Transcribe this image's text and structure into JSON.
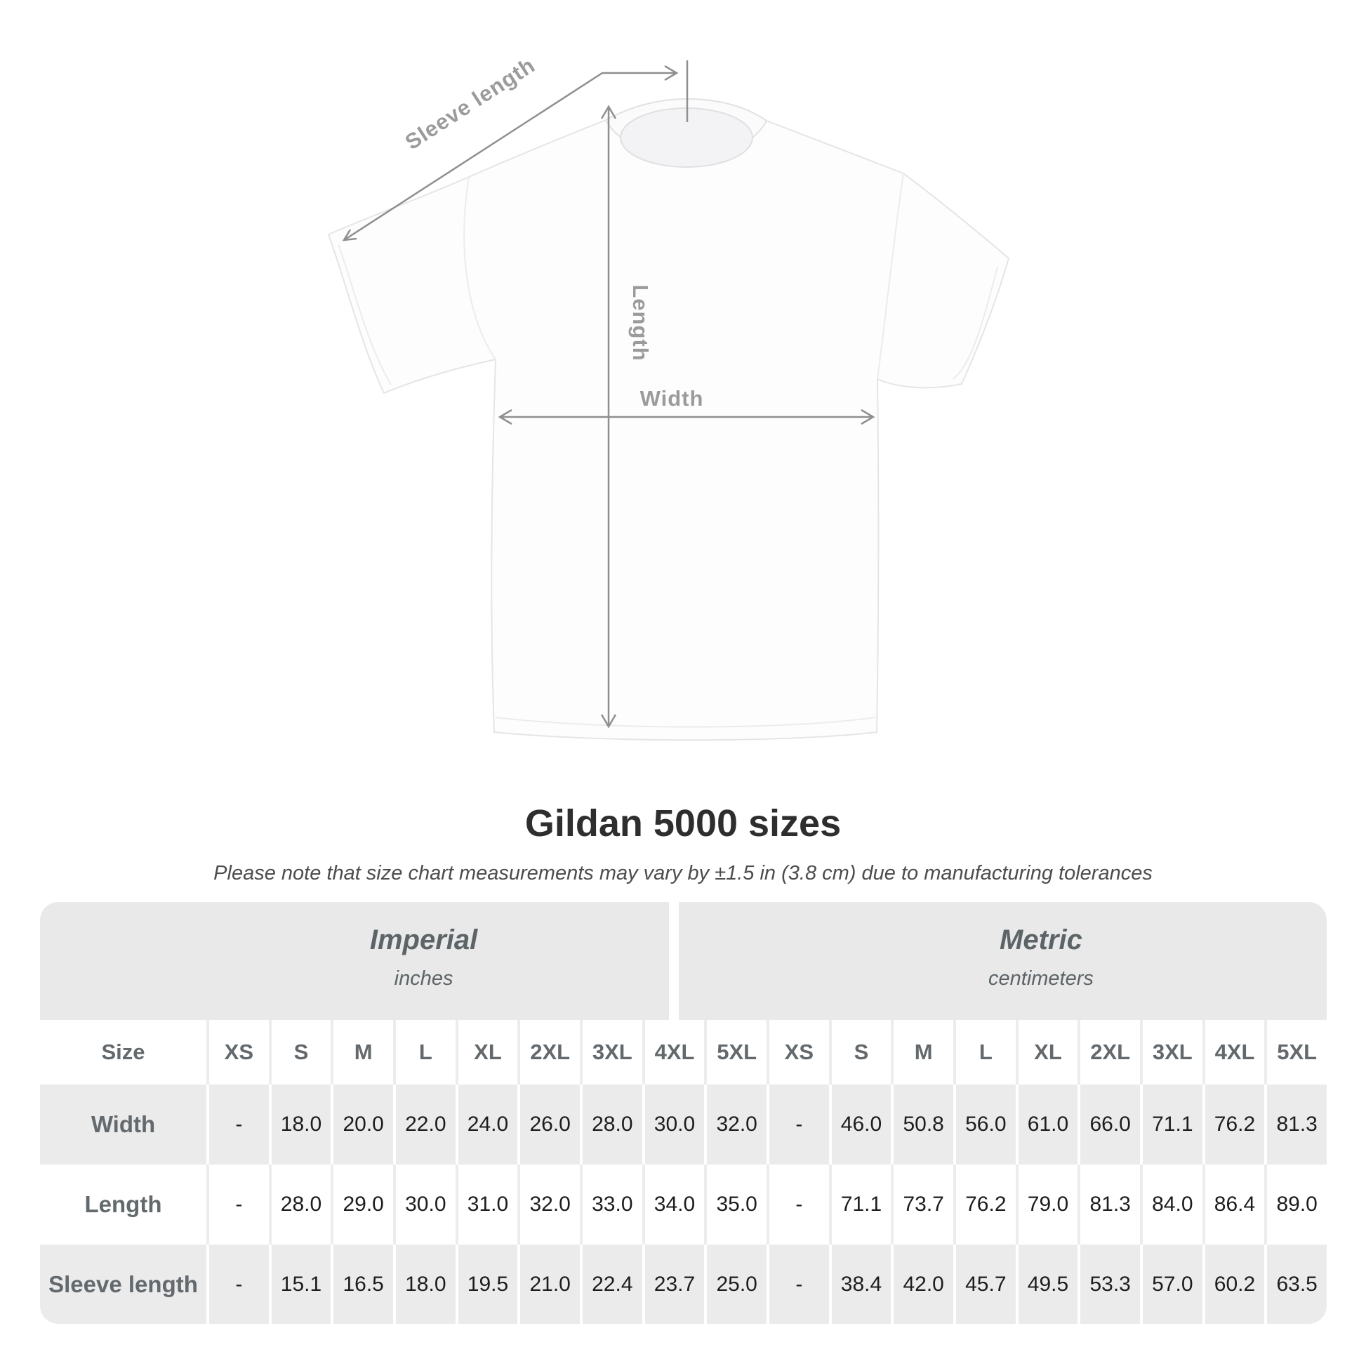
{
  "title": "Gildan 5000 sizes",
  "subtitle": "Please note that size chart measurements may vary by ±1.5 in (3.8 cm) due to manufacturing tolerances",
  "diagram": {
    "labels": {
      "sleeve_length": "Sleeve length",
      "length": "Length",
      "width": "Width"
    }
  },
  "table": {
    "size_header": "Size",
    "groups": [
      {
        "label": "Imperial",
        "sublabel": "inches"
      },
      {
        "label": "Metric",
        "sublabel": "centimeters"
      }
    ],
    "sizes": [
      "XS",
      "S",
      "M",
      "L",
      "XL",
      "2XL",
      "3XL",
      "4XL",
      "5XL"
    ],
    "rows": [
      {
        "label": "Width",
        "imperial": [
          "-",
          "18.0",
          "20.0",
          "22.0",
          "24.0",
          "26.0",
          "28.0",
          "30.0",
          "32.0"
        ],
        "metric": [
          "-",
          "46.0",
          "50.8",
          "56.0",
          "61.0",
          "66.0",
          "71.1",
          "76.2",
          "81.3"
        ]
      },
      {
        "label": "Length",
        "imperial": [
          "-",
          "28.0",
          "29.0",
          "30.0",
          "31.0",
          "32.0",
          "33.0",
          "34.0",
          "35.0"
        ],
        "metric": [
          "-",
          "71.1",
          "73.7",
          "76.2",
          "79.0",
          "81.3",
          "84.0",
          "86.4",
          "89.0"
        ]
      },
      {
        "label": "Sleeve length",
        "imperial": [
          "-",
          "15.1",
          "16.5",
          "18.0",
          "19.5",
          "21.0",
          "22.4",
          "23.7",
          "25.0"
        ],
        "metric": [
          "-",
          "38.4",
          "42.0",
          "45.7",
          "49.5",
          "53.3",
          "57.0",
          "60.2",
          "63.5"
        ]
      }
    ]
  },
  "chart_data": {
    "type": "table",
    "title": "Gildan 5000 sizes",
    "note": "Please note that size chart measurements may vary by ±1.5 in (3.8 cm) due to manufacturing tolerances",
    "unit_groups": [
      {
        "name": "Imperial",
        "unit": "inches",
        "columns": [
          "XS",
          "S",
          "M",
          "L",
          "XL",
          "2XL",
          "3XL",
          "4XL",
          "5XL"
        ],
        "rows": [
          {
            "measure": "Width",
            "values": [
              null,
              18.0,
              20.0,
              22.0,
              24.0,
              26.0,
              28.0,
              30.0,
              32.0
            ]
          },
          {
            "measure": "Length",
            "values": [
              null,
              28.0,
              29.0,
              30.0,
              31.0,
              32.0,
              33.0,
              34.0,
              35.0
            ]
          },
          {
            "measure": "Sleeve length",
            "values": [
              null,
              15.1,
              16.5,
              18.0,
              19.5,
              21.0,
              22.4,
              23.7,
              25.0
            ]
          }
        ]
      },
      {
        "name": "Metric",
        "unit": "centimeters",
        "columns": [
          "XS",
          "S",
          "M",
          "L",
          "XL",
          "2XL",
          "3XL",
          "4XL",
          "5XL"
        ],
        "rows": [
          {
            "measure": "Width",
            "values": [
              null,
              46.0,
              50.8,
              56.0,
              61.0,
              66.0,
              71.1,
              76.2,
              81.3
            ]
          },
          {
            "measure": "Length",
            "values": [
              null,
              71.1,
              73.7,
              76.2,
              79.0,
              81.3,
              84.0,
              86.4,
              89.0
            ]
          },
          {
            "measure": "Sleeve length",
            "values": [
              null,
              38.4,
              42.0,
              45.7,
              49.5,
              53.3,
              57.0,
              60.2,
              63.5
            ]
          }
        ]
      }
    ]
  },
  "colors": {
    "dimension_line": "#8f8f8f",
    "dimension_label": "#9b9b9b",
    "title_text": "#2e2e2e",
    "table_header_text": "#63696c",
    "table_value_text": "#1d1d1d",
    "stripe_gray": "#ebebec",
    "group_header_gray": "#e9e9ea"
  }
}
